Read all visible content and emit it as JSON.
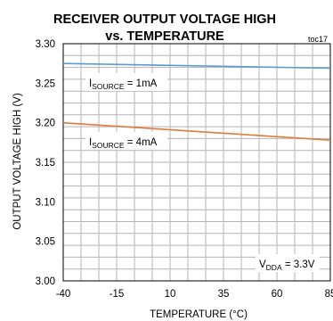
{
  "chart_data": {
    "type": "line",
    "title_line1": "RECEIVER OUTPUT VOLTAGE HIGH",
    "title_line2": "vs. TEMPERATURE",
    "figure_id": "toc17",
    "xlabel": "TEMPERATURE (°C)",
    "ylabel": "OUTPUT VOLTAGE HIGH (V)",
    "xlim": [
      -40,
      85
    ],
    "ylim": [
      3.0,
      3.3
    ],
    "x_ticks": [
      "-40",
      "-15",
      "10",
      "35",
      "60",
      "85"
    ],
    "y_ticks": [
      "3.30",
      "3.25",
      "3.20",
      "3.15",
      "3.10",
      "3.05",
      "3.00"
    ],
    "grid": true,
    "series": [
      {
        "x": [
          -40,
          85
        ],
        "values": [
          3.275,
          3.269
        ],
        "color": "#5b9bd5"
      },
      {
        "x": [
          -40,
          85
        ],
        "values": [
          3.2,
          3.178
        ],
        "color": "#e07b39"
      }
    ],
    "annotations": [
      {
        "main": "I",
        "sub": "SOURCE",
        "rest": " = 1mA"
      },
      {
        "main": "I",
        "sub": "SOURCE",
        "rest": " = 4mA"
      },
      {
        "main": "V",
        "sub": "DDA",
        "rest": " = 3.3V"
      }
    ]
  }
}
